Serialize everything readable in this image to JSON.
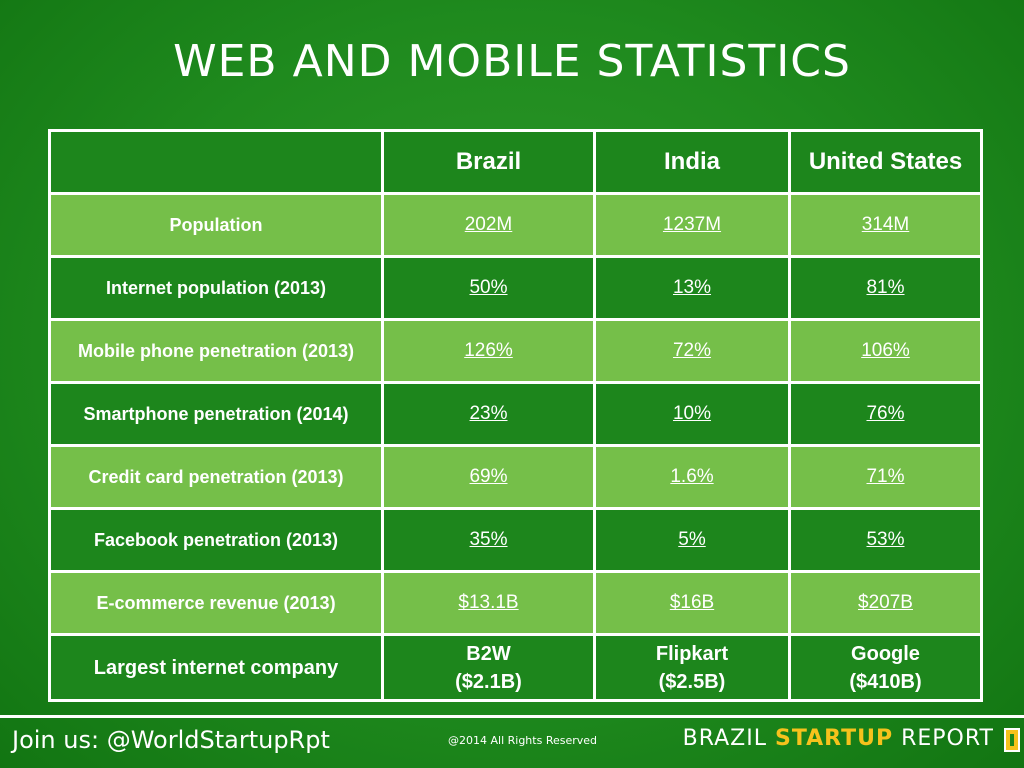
{
  "title": "WEB AND MOBILE STATISTICS",
  "table": {
    "columns": [
      "",
      "Brazil",
      "India",
      "United States"
    ],
    "rows": [
      {
        "label": "Population",
        "values": [
          "202M",
          "1237M",
          "314M"
        ]
      },
      {
        "label": "Internet population (2013)",
        "values": [
          "50%",
          "13%",
          "81%"
        ]
      },
      {
        "label": "Mobile phone penetration (2013)",
        "values": [
          "126%",
          "72%",
          "106%"
        ]
      },
      {
        "label": "Smartphone penetration (2014)",
        "values": [
          "23%",
          "10%",
          "76%"
        ]
      },
      {
        "label": "Credit card penetration (2013)",
        "values": [
          "69%",
          "1.6%",
          "71%"
        ]
      },
      {
        "label": "Facebook penetration (2013)",
        "values": [
          "35%",
          "5%",
          "53%"
        ]
      },
      {
        "label": "E-commerce revenue (2013)",
        "values": [
          "$13.1B",
          "$16B",
          "$207B"
        ]
      }
    ],
    "last_row": {
      "label": "Largest internet company",
      "values": [
        {
          "name": "B2W",
          "value": "($2.1B)"
        },
        {
          "name": "Flipkart",
          "value": "($2.5B)"
        },
        {
          "name": "Google",
          "value": "($410B)"
        }
      ]
    }
  },
  "footer": {
    "join": "Join us: @WorldStartupRpt",
    "rights": "@2014 All Rights Reserved",
    "brand_part1": "BRAZIL ",
    "brand_part2": "STARTUP",
    "brand_part3": " REPORT"
  },
  "colors": {
    "background": "#1f8a1e",
    "row_light": "#75bf49",
    "row_dark": "#1d861c",
    "accent": "#f6c21c"
  },
  "icons": {
    "brand_logo": "brand-logo-icon"
  }
}
